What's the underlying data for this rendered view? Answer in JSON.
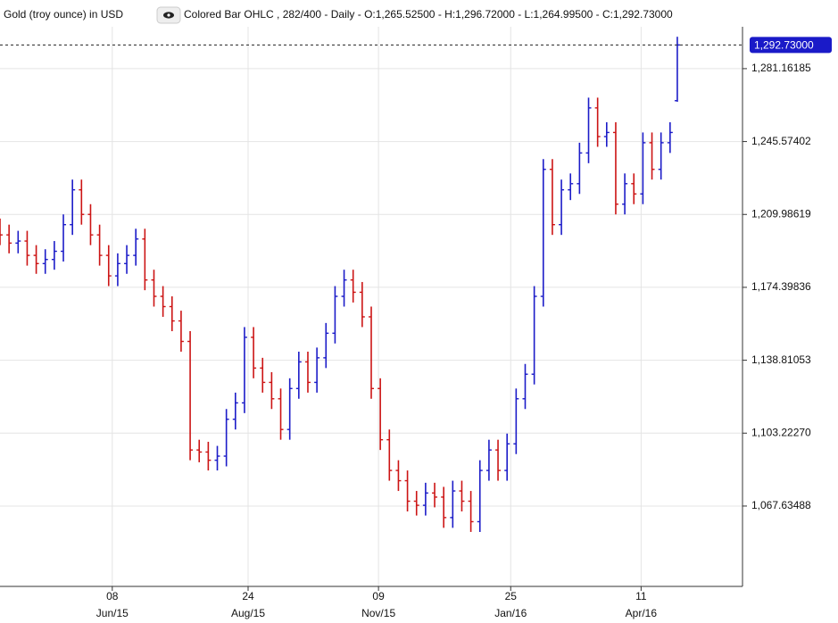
{
  "chart_data": {
    "type": "ohlc",
    "title": "Gold (troy ounce) in USD",
    "subtitle": "Colored Bar OHLC , 282/400 - Daily - O:1,265.52500 - H:1,296.72000 - L:1,264.99500 - C:1,292.73000",
    "up_color": "#1c1cc8",
    "down_color": "#cc1414",
    "x": [
      0,
      5,
      10,
      15,
      20,
      25,
      30,
      35,
      40,
      45,
      50,
      55,
      60,
      65,
      70,
      75,
      80,
      85,
      90,
      95,
      100,
      105,
      110,
      115,
      120,
      125,
      130,
      135,
      140,
      145,
      150,
      155,
      160,
      165,
      170,
      175,
      180,
      185,
      190,
      195,
      200,
      205,
      210,
      215,
      220,
      225,
      230,
      235,
      240,
      245,
      250,
      255,
      260,
      265,
      270,
      275,
      280,
      285,
      290,
      295,
      300,
      305,
      310,
      315,
      320,
      325,
      330,
      335,
      340,
      345,
      350,
      355,
      360,
      365,
      370,
      374
    ],
    "open": [
      1203,
      1200,
      1196,
      1197,
      1190,
      1186,
      1188,
      1192,
      1205,
      1222,
      1210,
      1200,
      1190,
      1180,
      1186,
      1190,
      1198,
      1178,
      1170,
      1165,
      1158,
      1148,
      1095,
      1094,
      1090,
      1092,
      1110,
      1118,
      1150,
      1135,
      1128,
      1120,
      1105,
      1125,
      1138,
      1128,
      1140,
      1152,
      1170,
      1178,
      1172,
      1160,
      1125,
      1100,
      1085,
      1080,
      1070,
      1068,
      1074,
      1072,
      1062,
      1075,
      1070,
      1060,
      1085,
      1095,
      1085,
      1098,
      1120,
      1132,
      1170,
      1232,
      1205,
      1222,
      1225,
      1240,
      1262,
      1248,
      1250,
      1215,
      1225,
      1220,
      1245,
      1232,
      1245,
      1265.525
    ],
    "high": [
      1208,
      1205,
      1202,
      1202,
      1195,
      1193,
      1197,
      1210,
      1227,
      1227,
      1215,
      1205,
      1195,
      1191,
      1195,
      1203,
      1203,
      1183,
      1175,
      1170,
      1163,
      1153,
      1100,
      1099,
      1097,
      1115,
      1123,
      1155,
      1155,
      1140,
      1133,
      1125,
      1130,
      1143,
      1143,
      1145,
      1157,
      1175,
      1183,
      1183,
      1177,
      1165,
      1130,
      1105,
      1090,
      1085,
      1075,
      1079,
      1079,
      1077,
      1080,
      1080,
      1075,
      1090,
      1100,
      1100,
      1103,
      1125,
      1137,
      1175,
      1237,
      1237,
      1227,
      1230,
      1245,
      1267,
      1267,
      1255,
      1255,
      1230,
      1230,
      1250,
      1250,
      1250,
      1255,
      1296.72
    ],
    "low": [
      1195,
      1191,
      1191,
      1185,
      1181,
      1181,
      1183,
      1187,
      1200,
      1205,
      1195,
      1185,
      1175,
      1175,
      1181,
      1185,
      1173,
      1165,
      1160,
      1153,
      1143,
      1090,
      1089,
      1085,
      1085,
      1087,
      1105,
      1113,
      1130,
      1123,
      1115,
      1100,
      1100,
      1120,
      1123,
      1123,
      1135,
      1147,
      1165,
      1167,
      1155,
      1120,
      1095,
      1080,
      1075,
      1065,
      1063,
      1063,
      1067,
      1057,
      1057,
      1065,
      1055,
      1055,
      1080,
      1080,
      1080,
      1093,
      1115,
      1127,
      1165,
      1200,
      1200,
      1217,
      1220,
      1235,
      1243,
      1243,
      1210,
      1210,
      1215,
      1215,
      1227,
      1227,
      1240,
      1264.995
    ],
    "close": [
      1200,
      1196,
      1197,
      1190,
      1186,
      1188,
      1192,
      1205,
      1222,
      1210,
      1200,
      1190,
      1180,
      1186,
      1190,
      1198,
      1178,
      1170,
      1165,
      1158,
      1148,
      1095,
      1094,
      1090,
      1092,
      1110,
      1118,
      1150,
      1135,
      1128,
      1120,
      1105,
      1125,
      1138,
      1128,
      1140,
      1152,
      1170,
      1178,
      1172,
      1160,
      1125,
      1100,
      1085,
      1080,
      1070,
      1068,
      1074,
      1072,
      1062,
      1075,
      1070,
      1060,
      1085,
      1095,
      1085,
      1098,
      1120,
      1132,
      1170,
      1232,
      1205,
      1222,
      1225,
      1240,
      1262,
      1248,
      1250,
      1215,
      1225,
      1220,
      1245,
      1232,
      1245,
      1250,
      1292.73
    ],
    "xlim": [
      0,
      410
    ],
    "xticks": [
      {
        "value": 62,
        "label": "08"
      },
      {
        "value": 137,
        "label": "24"
      },
      {
        "value": 209,
        "label": "09"
      },
      {
        "value": 282,
        "label": "25"
      },
      {
        "value": 354,
        "label": "11"
      }
    ],
    "xtick_months": [
      "Jun/15",
      "Aug/15",
      "Nov/15",
      "Jan/16",
      "Apr/16"
    ],
    "ylim": [
      1028.4,
      1301.6
    ],
    "yticks": [
      {
        "value": 1067.63488,
        "label": "1,067.63488"
      },
      {
        "value": 1103.2227,
        "label": "1,103.22270"
      },
      {
        "value": 1138.81053,
        "label": "1,138.81053"
      },
      {
        "value": 1174.39836,
        "label": "1,174.39836"
      },
      {
        "value": 1209.98619,
        "label": "1,209.98619"
      },
      {
        "value": 1245.57402,
        "label": "1,245.57402"
      },
      {
        "value": 1281.16185,
        "label": "1,281.16185"
      }
    ],
    "last_price": {
      "value": 1292.73,
      "label": "1,292.73000"
    },
    "grid": true
  }
}
